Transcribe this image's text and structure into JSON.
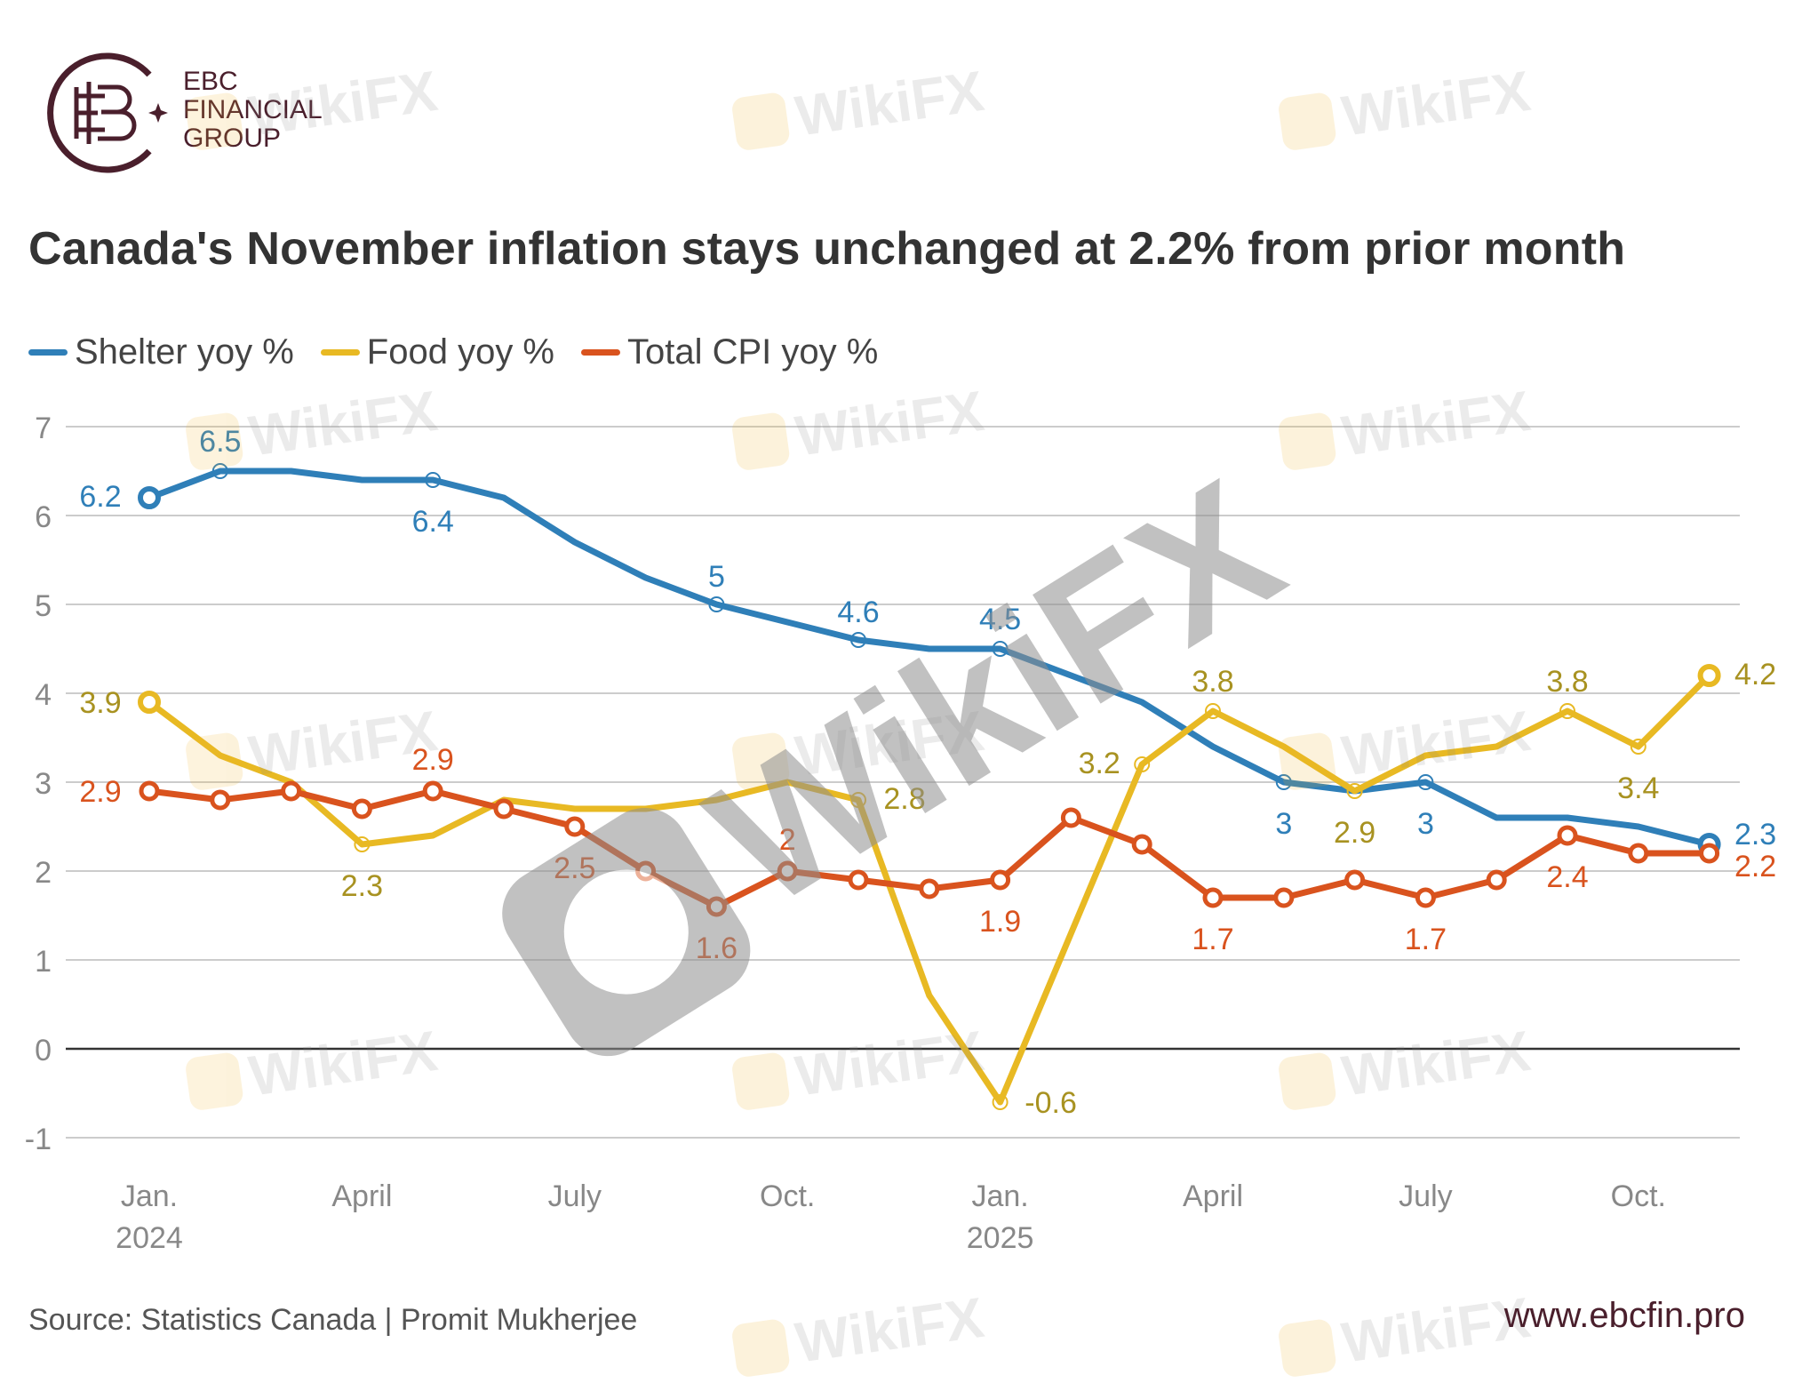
{
  "brand": {
    "line1": "EBC",
    "line2": "FINANCIAL",
    "line3": "GROUP",
    "color": "#4a1f2c"
  },
  "title": "Canada's November inflation stays unchanged at 2.2% from prior month",
  "source": "Source: Statistics Canada | Promit Mukherjee",
  "website": "www.ebcfin.pro",
  "watermark_text": "WikiFX",
  "chart_data": {
    "type": "line",
    "ylim": [
      -1,
      7
    ],
    "yticks": [
      -1,
      0,
      1,
      2,
      3,
      4,
      5,
      6,
      7
    ],
    "grid": true,
    "legend_position": "top-left",
    "x": [
      "2024-01",
      "2024-02",
      "2024-03",
      "2024-04",
      "2024-05",
      "2024-06",
      "2024-07",
      "2024-08",
      "2024-09",
      "2024-10",
      "2024-11",
      "2024-12",
      "2025-01",
      "2025-02",
      "2025-03",
      "2025-04",
      "2025-05",
      "2025-06",
      "2025-07",
      "2025-08",
      "2025-09",
      "2025-10",
      "2025-11"
    ],
    "xtick_labels": [
      {
        "index": 0,
        "label": "Jan.",
        "sublabel": "2024"
      },
      {
        "index": 3,
        "label": "April",
        "sublabel": ""
      },
      {
        "index": 6,
        "label": "July",
        "sublabel": ""
      },
      {
        "index": 9,
        "label": "Oct.",
        "sublabel": ""
      },
      {
        "index": 12,
        "label": "Jan.",
        "sublabel": "2025"
      },
      {
        "index": 15,
        "label": "April",
        "sublabel": ""
      },
      {
        "index": 18,
        "label": "July",
        "sublabel": ""
      },
      {
        "index": 21,
        "label": "Oct.",
        "sublabel": ""
      }
    ],
    "series": [
      {
        "name": "Shelter yoy %",
        "color": "#2f7fb8",
        "values": [
          6.2,
          6.5,
          6.5,
          6.4,
          6.4,
          6.2,
          5.7,
          5.3,
          5.0,
          4.8,
          4.6,
          4.5,
          4.5,
          4.2,
          3.9,
          3.4,
          3.0,
          2.9,
          3.0,
          2.6,
          2.6,
          2.5,
          2.3
        ],
        "labels": [
          {
            "index": 0,
            "text": "6.2"
          },
          {
            "index": 1,
            "text": "6.5"
          },
          {
            "index": 4,
            "text": "6.4"
          },
          {
            "index": 8,
            "text": "5"
          },
          {
            "index": 10,
            "text": "4.6"
          },
          {
            "index": 12,
            "text": "4.5"
          },
          {
            "index": 16,
            "text": "3"
          },
          {
            "index": 18,
            "text": "3"
          },
          {
            "index": 22,
            "text": "2.3"
          }
        ]
      },
      {
        "name": "Food yoy %",
        "color": "#e8b923",
        "values": [
          3.9,
          3.3,
          3.0,
          2.3,
          2.4,
          2.8,
          2.7,
          2.7,
          2.8,
          3.0,
          2.8,
          0.6,
          -0.6,
          1.3,
          3.2,
          3.8,
          3.4,
          2.9,
          3.3,
          3.4,
          3.8,
          3.4,
          4.2
        ],
        "labels": [
          {
            "index": 0,
            "text": "3.9"
          },
          {
            "index": 3,
            "text": "2.3"
          },
          {
            "index": 10,
            "text": "2.8"
          },
          {
            "index": 12,
            "text": "-0.6"
          },
          {
            "index": 14,
            "text": "3.2"
          },
          {
            "index": 15,
            "text": "3.8"
          },
          {
            "index": 17,
            "text": "2.9"
          },
          {
            "index": 20,
            "text": "3.8"
          },
          {
            "index": 21,
            "text": "3.4"
          },
          {
            "index": 22,
            "text": "4.2"
          }
        ]
      },
      {
        "name": "Total CPI yoy %",
        "color": "#d9531e",
        "values": [
          2.9,
          2.8,
          2.9,
          2.7,
          2.9,
          2.7,
          2.5,
          2.0,
          1.6,
          2.0,
          1.9,
          1.8,
          1.9,
          2.6,
          2.3,
          1.7,
          1.7,
          1.9,
          1.7,
          1.9,
          2.4,
          2.2,
          2.2
        ],
        "labels": [
          {
            "index": 0,
            "text": "2.9"
          },
          {
            "index": 4,
            "text": "2.9"
          },
          {
            "index": 6,
            "text": "2.5"
          },
          {
            "index": 8,
            "text": "1.6"
          },
          {
            "index": 9,
            "text": "2"
          },
          {
            "index": 12,
            "text": "1.9"
          },
          {
            "index": 15,
            "text": "1.7"
          },
          {
            "index": 18,
            "text": "1.7"
          },
          {
            "index": 20,
            "text": "2.4"
          },
          {
            "index": 22,
            "text": "2.2"
          }
        ]
      }
    ]
  }
}
